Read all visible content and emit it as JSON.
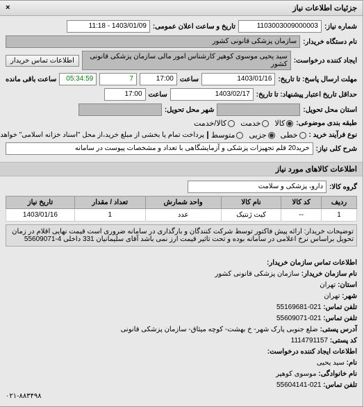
{
  "header": {
    "title": "جزئیات اطلاعات نیاز"
  },
  "form": {
    "request_no_label": "شماره نیاز:",
    "request_no": "1103003009000003",
    "announce_date_label": "تاریخ و ساعت اعلان عمومی:",
    "announce_date": "1403/01/09 - 11:18",
    "buyer_org_label": "نام دستگاه خریدار:",
    "buyer_org": "سازمان پزشکی قانونی کشور",
    "creator_label": "ایجاد کننده درخواست:",
    "creator": "سید یحیی موسوی کوهپر کارشناس امور مالی سازمان پزشکی قانونی کشور",
    "creator_btn": "اطلاعات تماس خریدار",
    "deadline_label": "مهلت ارسال پاسخ: تا تاریخ:",
    "deadline_date": "1403/01/16",
    "deadline_time_label": "ساعت",
    "deadline_time": "17:00",
    "days_remaining": "7",
    "time_remaining": "05:34:59",
    "remaining_label": "ساعت باقی مانده",
    "validity_label": "حداقل تاریخ اعتبار پیشنهاد: تا تاریخ:",
    "validity_date": "1403/02/17",
    "validity_time": "17:00",
    "delivery_city_label": "استان محل تحویل:",
    "delivery_city2_label": "شهر محل تحویل:",
    "packaging_label": "طبقه بندی موضوعی:",
    "packaging_options": {
      "kala": "کالا",
      "khedmat": "خدمت",
      "both": "کالا/خدمت"
    },
    "purchase_type_label": "نوع فرآیند خرید :",
    "purchase_options": {
      "linear": "خطی",
      "partial": "جزیی",
      "medium": "متوسط"
    },
    "payment_note": "پرداخت تمام یا بخشی از مبلغ خرید،از محل \"اسناد خزانه اسلامی\" خواهد بود.",
    "desc_label": "شرح کلی نیاز:",
    "desc": "خرید20 قلم تجهیزات پزشکی و آزمایشگاهی با تعداد و مشخصات پیوست در سامانه"
  },
  "goods_section": {
    "title": "اطلاعات کالاهای مورد نیاز",
    "group_label": "گروه کالا:",
    "group": "دارو، پزشکی و سلامت"
  },
  "table": {
    "headers": {
      "row": "ردیف",
      "code": "کد کالا",
      "name": "نام کالا",
      "unit": "واحد شمارش",
      "qty": "تعداد / مقدار",
      "date": "تاریخ نیاز"
    },
    "rows": [
      {
        "row": "1",
        "code": "--",
        "name": "کیت ژنتیک",
        "unit": "عدد",
        "qty": "1",
        "date": "1403/01/16"
      }
    ]
  },
  "notes": {
    "label": "توضیحات خریدار:",
    "text": "ارائه پیش فاکتور توسط شرکت کنندگان و بارگذاری در سامانه ضروری است قیمت نهایی اقلام در زمان تحویل براساس نرخ اعلامی در سامانه بوده و تحت تاثیر قیمت ارز نمی باشد آقای سلیمانیان 331 داخلی 4-55609071"
  },
  "contact": {
    "section_title": "اطلاعات تماس سازمان خریدار:",
    "org_label": "نام سازمان خریدار:",
    "org": "سازمان پزشکی قانونی کشور",
    "province_label": "استان:",
    "province": "تهران",
    "city_label": "شهر:",
    "city": "تهران",
    "phone_label": "تلفن تماس:",
    "phone": "021-55169681",
    "fax_label": "تلفن تماس:",
    "fax": "021-55609071",
    "address_label": "آدرس پستی:",
    "address": "ضلع جنوبی پارک شهر- خ بهشت- کوچه میثاق- سازمان پزشکی قانونی",
    "postal_label": "کد پستی:",
    "postal": "1114791157",
    "creator_section": "اطلاعات ایجاد کننده درخواست:",
    "name_label": "نام:",
    "name": "سید یحیی",
    "lastname_label": "نام خانوادگی:",
    "lastname": "موسوی کوهپر",
    "creator_phone_label": "تلفن تماس:",
    "creator_phone": "021-55604141",
    "footer_phone": "۰۲۱-۸۸۳۴۹۸"
  }
}
